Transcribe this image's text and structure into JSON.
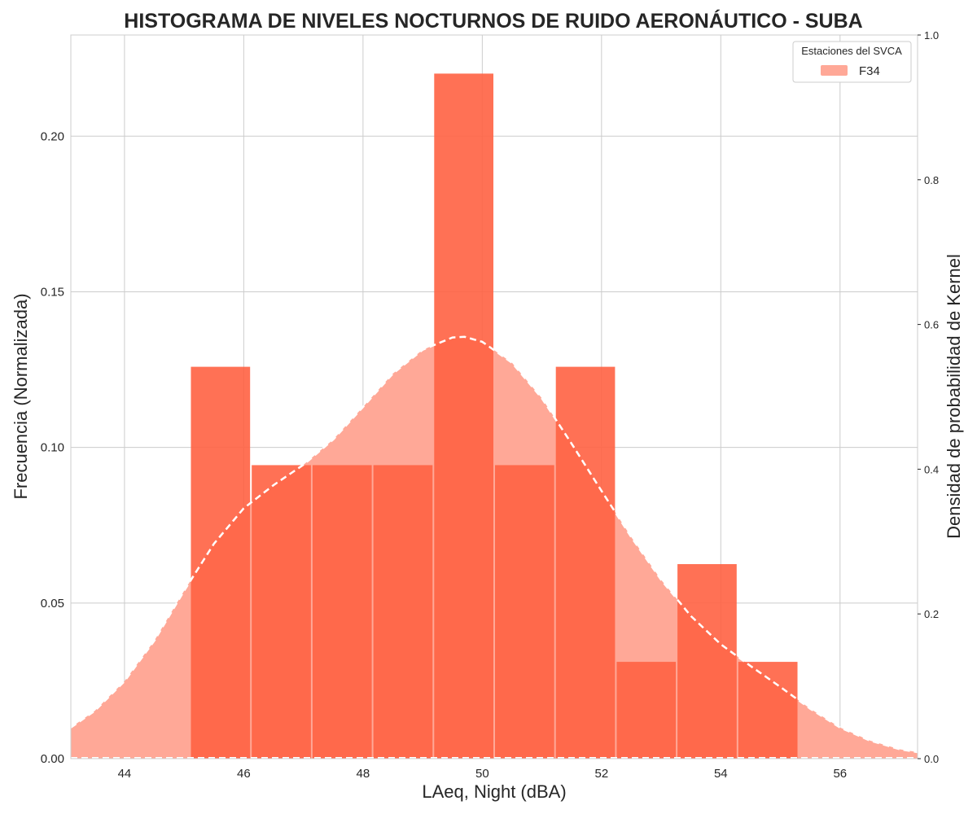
{
  "chart_data": {
    "type": "bar",
    "title": "HISTOGRAMA DE NIVELES NOCTURNOS DE RUIDO AERONÁUTICO - SUBA",
    "xlabel": "LAeq, Night (dBA)",
    "ylabel": "Frecuencia (Normalizada)",
    "y2label": "Densidad de probabilidad de Kernel",
    "xlim": [
      43.1,
      57.3
    ],
    "ylim": [
      0,
      0.2325
    ],
    "y2lim": [
      0,
      1.0
    ],
    "x_ticks": [
      44,
      46,
      48,
      50,
      52,
      54,
      56
    ],
    "x_tick_labels": [
      "44",
      "46",
      "48",
      "50",
      "52",
      "54",
      "56"
    ],
    "y_ticks": [
      0.0,
      0.05,
      0.1,
      0.15,
      0.2
    ],
    "y_tick_labels": [
      "0.00",
      "0.05",
      "0.10",
      "0.15",
      "0.20"
    ],
    "y2_ticks": [
      0.0,
      0.2,
      0.4,
      0.6,
      0.8,
      1.0
    ],
    "y2_tick_labels": [
      "0.0",
      "0.2",
      "0.4",
      "0.6",
      "0.8",
      "1.0"
    ],
    "bins": [
      {
        "x0": 45.1,
        "x1": 46.12,
        "value": 0.1259
      },
      {
        "x0": 46.12,
        "x1": 47.14,
        "value": 0.0943
      },
      {
        "x0": 47.14,
        "x1": 48.16,
        "value": 0.0943
      },
      {
        "x0": 48.16,
        "x1": 49.18,
        "value": 0.0943
      },
      {
        "x0": 49.18,
        "x1": 50.2,
        "value": 0.2201
      },
      {
        "x0": 50.2,
        "x1": 51.22,
        "value": 0.0943
      },
      {
        "x0": 51.22,
        "x1": 52.24,
        "value": 0.1259
      },
      {
        "x0": 52.24,
        "x1": 53.26,
        "value": 0.0311
      },
      {
        "x0": 53.26,
        "x1": 54.28,
        "value": 0.0625
      },
      {
        "x0": 54.28,
        "x1": 55.3,
        "value": 0.0311
      }
    ],
    "kde": {
      "x": [
        43.1,
        43.5,
        44.0,
        44.5,
        45.0,
        45.5,
        46.0,
        46.5,
        47.0,
        47.5,
        48.0,
        48.5,
        49.0,
        49.5,
        49.7,
        50.0,
        50.5,
        51.0,
        51.5,
        52.0,
        52.5,
        53.0,
        53.5,
        54.0,
        54.5,
        55.0,
        55.5,
        56.0,
        56.5,
        57.0,
        57.3
      ],
      "y": [
        0.043,
        0.066,
        0.107,
        0.163,
        0.232,
        0.297,
        0.346,
        0.378,
        0.406,
        0.441,
        0.486,
        0.532,
        0.565,
        0.582,
        0.583,
        0.576,
        0.547,
        0.498,
        0.435,
        0.37,
        0.306,
        0.247,
        0.197,
        0.158,
        0.128,
        0.099,
        0.069,
        0.043,
        0.025,
        0.013,
        0.009
      ]
    },
    "legend": {
      "title": "Estaciones del SVCA",
      "entries": [
        "F34"
      ],
      "placement": "top-right"
    },
    "grid": true
  },
  "colors": {
    "bar": "#ff6242",
    "kde_fill": "#ffa897",
    "kde_line": "#ffffff",
    "text": "#262626",
    "grid": "#cccccc"
  }
}
